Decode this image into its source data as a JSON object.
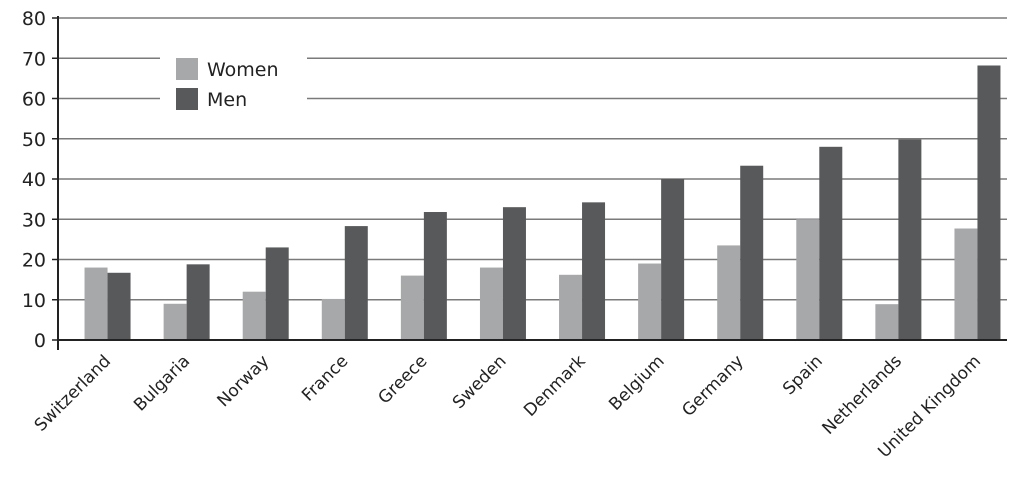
{
  "chart_data": {
    "type": "bar",
    "title": "",
    "xlabel": "",
    "ylabel": "",
    "ylim": [
      0,
      80
    ],
    "yticks": [
      0,
      10,
      20,
      30,
      40,
      50,
      60,
      70,
      80
    ],
    "grid": true,
    "legend_placement": "top-left",
    "categories": [
      "Switzerland",
      "Bulgaria",
      "Norway",
      "France",
      "Greece",
      "Sweden",
      "Denmark",
      "Belgium",
      "Germany",
      "Spain",
      "Netherlands",
      "United Kingdom"
    ],
    "series": [
      {
        "name": "Women",
        "color": "#a7a8aa",
        "values": [
          18,
          9,
          12,
          10.2,
          16,
          18,
          16.2,
          19,
          23.5,
          30,
          8.9,
          27.7
        ]
      },
      {
        "name": "Men",
        "color": "#58595b",
        "values": [
          16.7,
          18.8,
          23,
          28.3,
          31.8,
          33,
          34.2,
          40,
          43.3,
          48,
          49.8,
          68.2
        ]
      }
    ]
  }
}
